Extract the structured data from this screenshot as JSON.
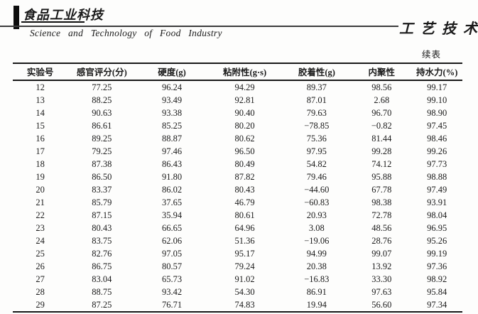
{
  "journal": {
    "logo_cn": "食品工业科技",
    "subtitle_en": "Science and Technology of Food Industry",
    "section_cn": "工艺技术",
    "continued_table_label": "续表"
  },
  "table": {
    "columns": [
      "实验号",
      "感官评分(分)",
      "硬度(g)",
      "粘附性(g·s)",
      "胶着性(g)",
      "内聚性",
      "持水力(%)"
    ],
    "rows": [
      [
        "12",
        "77.25",
        "96.24",
        "94.29",
        "89.37",
        "98.56",
        "99.17"
      ],
      [
        "13",
        "88.25",
        "93.49",
        "92.81",
        "87.01",
        "2.68",
        "99.10"
      ],
      [
        "14",
        "90.63",
        "93.38",
        "90.40",
        "79.63",
        "96.70",
        "98.90"
      ],
      [
        "15",
        "86.61",
        "85.25",
        "80.20",
        "−78.85",
        "−0.82",
        "97.45"
      ],
      [
        "16",
        "89.25",
        "88.87",
        "80.62",
        "75.36",
        "81.44",
        "98.46"
      ],
      [
        "17",
        "79.25",
        "97.46",
        "96.50",
        "97.95",
        "99.28",
        "99.26"
      ],
      [
        "18",
        "87.38",
        "86.43",
        "80.49",
        "54.82",
        "74.12",
        "97.73"
      ],
      [
        "19",
        "86.50",
        "91.80",
        "87.82",
        "79.46",
        "95.88",
        "98.88"
      ],
      [
        "20",
        "83.37",
        "86.02",
        "80.43",
        "−44.60",
        "67.78",
        "97.49"
      ],
      [
        "21",
        "85.79",
        "37.65",
        "46.79",
        "−60.83",
        "98.38",
        "93.91"
      ],
      [
        "22",
        "87.15",
        "35.94",
        "80.61",
        "20.93",
        "72.78",
        "98.04"
      ],
      [
        "23",
        "80.43",
        "66.65",
        "64.96",
        "3.08",
        "48.56",
        "96.95"
      ],
      [
        "24",
        "83.75",
        "62.06",
        "51.36",
        "−19.06",
        "28.76",
        "95.26"
      ],
      [
        "25",
        "82.76",
        "97.05",
        "95.17",
        "94.99",
        "99.07",
        "99.19"
      ],
      [
        "26",
        "86.75",
        "80.57",
        "79.24",
        "20.38",
        "13.92",
        "97.36"
      ],
      [
        "27",
        "83.04",
        "65.73",
        "91.02",
        "−16.83",
        "33.30",
        "98.92"
      ],
      [
        "28",
        "88.75",
        "93.42",
        "54.30",
        "86.91",
        "97.63",
        "95.84"
      ],
      [
        "29",
        "87.25",
        "76.71",
        "74.83",
        "19.94",
        "56.60",
        "97.34"
      ]
    ]
  },
  "colors": {
    "ink": "#1a1a1a",
    "rule": "#191919",
    "background": "#fdfdfc"
  }
}
